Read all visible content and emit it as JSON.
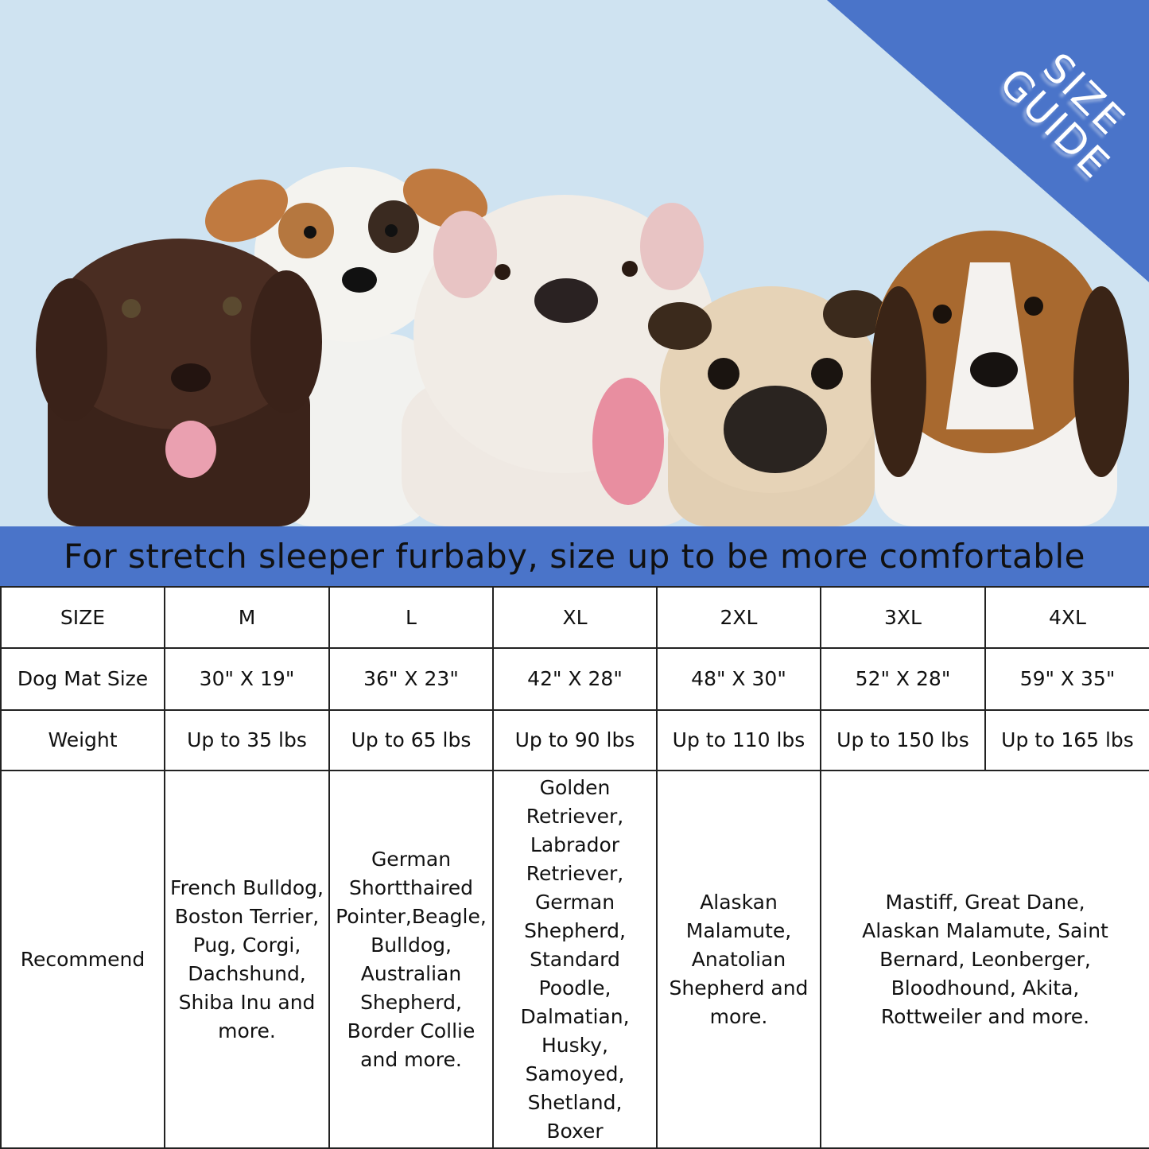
{
  "corner_badge": {
    "line1": "SIZE",
    "line2": "GUIDE"
  },
  "colors": {
    "accent_blue": "#4a74c9",
    "background_blue": "#cfe3f1"
  },
  "banner": {
    "text": "For stretch sleeper furbaby, size up to be more comfortable"
  },
  "table": {
    "headers": [
      "SIZE",
      "M",
      "L",
      "XL",
      "2XL",
      "3XL",
      "4XL"
    ],
    "mat_size": {
      "label": "Dog Mat Size",
      "values": [
        "30\" X 19\"",
        "36\" X 23\"",
        "42\" X 28\"",
        "48\" X 30\"",
        "52\" X 28\"",
        "59\" X 35\""
      ]
    },
    "weight": {
      "label": "Weight",
      "values": [
        "Up to 35 lbs",
        "Up to 65 lbs",
        "Up to 90 lbs",
        "Up to 110 lbs",
        "Up to 150 lbs",
        "Up to 165 lbs"
      ]
    },
    "recommend": {
      "label": "Recommend",
      "values": [
        "French Bulldog, Boston Terrier, Pug, Corgi, Dachshund, Shiba Inu and more.",
        "German Shortthaired Pointer,Beagle, Bulldog, Australian Shepherd, Border Collie and more.",
        "Golden Retriever, Labrador Retriever, German Shepherd, Standard Poodle, Dalmatian, Husky, Samoyed, Shetland, Boxer",
        "Alaskan Malamute, Anatolian Shepherd and more.",
        "Mastiff, Great Dane, Alaskan Malamute, Saint Bernard, Leonberger, Bloodhound, Akita, Rottweiler and more."
      ]
    }
  }
}
